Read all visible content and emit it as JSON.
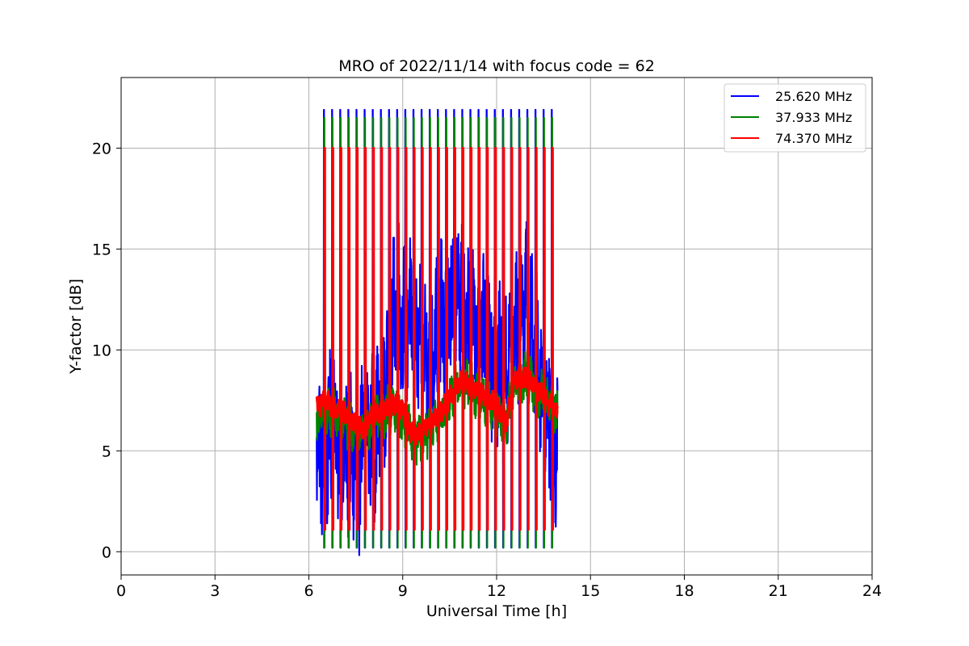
{
  "chart_data": {
    "type": "line",
    "title": "MRO of 2022/11/14 with focus code = 62",
    "xlabel": "Universal Time [h]",
    "ylabel": "Y-factor [dB]",
    "xlim": [
      0,
      24
    ],
    "ylim": [
      -1.15,
      23.5
    ],
    "xticks": [
      0,
      3,
      6,
      9,
      12,
      15,
      18,
      21,
      24
    ],
    "yticks": [
      0,
      5,
      10,
      15,
      20
    ],
    "grid": true,
    "legend_position": "top-right",
    "series": [
      {
        "name": "25.620 MHz",
        "color": "#0000ff",
        "spike_peak": 21.9,
        "spike_base": 0.2,
        "baseline": [
          [
            6.25,
            5.5
          ],
          [
            6.5,
            4.5
          ],
          [
            6.8,
            6.5
          ],
          [
            7.0,
            5.0
          ],
          [
            7.3,
            4.5
          ],
          [
            7.6,
            4.0
          ],
          [
            7.8,
            6.5
          ],
          [
            8.0,
            5.5
          ],
          [
            8.3,
            6.5
          ],
          [
            8.6,
            9.5
          ],
          [
            8.8,
            13.0
          ],
          [
            9.0,
            11.0
          ],
          [
            9.3,
            12.0
          ],
          [
            9.6,
            9.5
          ],
          [
            9.9,
            10.0
          ],
          [
            10.2,
            11.0
          ],
          [
            10.5,
            12.0
          ],
          [
            10.8,
            13.0
          ],
          [
            11.1,
            11.5
          ],
          [
            11.4,
            10.5
          ],
          [
            11.7,
            10.5
          ],
          [
            12.0,
            9.0
          ],
          [
            12.3,
            9.0
          ],
          [
            12.6,
            11.0
          ],
          [
            12.9,
            12.5
          ],
          [
            13.2,
            10.0
          ],
          [
            13.5,
            8.0
          ],
          [
            13.9,
            5.5
          ]
        ]
      },
      {
        "name": "37.933 MHz",
        "color": "#008000",
        "spike_peak": 21.5,
        "spike_base": 0.2,
        "baseline": [
          [
            6.25,
            6.5
          ],
          [
            6.5,
            6.8
          ],
          [
            6.8,
            6.8
          ],
          [
            7.0,
            6.6
          ],
          [
            7.3,
            6.3
          ],
          [
            7.6,
            5.9
          ],
          [
            7.8,
            6.0
          ],
          [
            8.0,
            6.4
          ],
          [
            8.3,
            6.8
          ],
          [
            8.6,
            7.0
          ],
          [
            8.8,
            7.1
          ],
          [
            9.0,
            6.5
          ],
          [
            9.3,
            5.8
          ],
          [
            9.6,
            5.6
          ],
          [
            9.9,
            6.2
          ],
          [
            10.2,
            6.8
          ],
          [
            10.5,
            7.6
          ],
          [
            10.8,
            8.4
          ],
          [
            11.1,
            8.2
          ],
          [
            11.4,
            7.8
          ],
          [
            11.7,
            7.5
          ],
          [
            12.0,
            7.0
          ],
          [
            12.3,
            6.4
          ],
          [
            12.6,
            8.5
          ],
          [
            12.9,
            8.6
          ],
          [
            13.2,
            8.2
          ],
          [
            13.5,
            7.6
          ],
          [
            13.9,
            7.0
          ]
        ]
      },
      {
        "name": "74.370 MHz",
        "color": "#ff0000",
        "spike_peak": 20.0,
        "spike_base": 1.1,
        "baseline": [
          [
            6.25,
            7.2
          ],
          [
            6.5,
            7.4
          ],
          [
            6.8,
            7.2
          ],
          [
            7.0,
            7.0
          ],
          [
            7.3,
            6.6
          ],
          [
            7.6,
            6.1
          ],
          [
            7.8,
            6.2
          ],
          [
            8.0,
            6.7
          ],
          [
            8.3,
            7.0
          ],
          [
            8.6,
            7.2
          ],
          [
            8.8,
            7.4
          ],
          [
            9.0,
            7.0
          ],
          [
            9.3,
            5.8
          ],
          [
            9.6,
            5.9
          ],
          [
            9.9,
            6.4
          ],
          [
            10.2,
            6.9
          ],
          [
            10.5,
            7.6
          ],
          [
            10.8,
            8.4
          ],
          [
            11.1,
            8.3
          ],
          [
            11.4,
            7.9
          ],
          [
            11.7,
            7.6
          ],
          [
            12.0,
            7.2
          ],
          [
            12.3,
            6.3
          ],
          [
            12.6,
            8.6
          ],
          [
            12.9,
            8.6
          ],
          [
            13.2,
            8.3
          ],
          [
            13.5,
            7.7
          ],
          [
            13.9,
            6.9
          ]
        ]
      }
    ],
    "spike_times": [
      6.48,
      6.74,
      7.0,
      7.26,
      7.52,
      7.78,
      8.04,
      8.3,
      8.56,
      8.82,
      9.08,
      9.34,
      9.6,
      9.86,
      10.12,
      10.38,
      10.64,
      10.9,
      11.16,
      11.42,
      11.68,
      11.94,
      12.2,
      12.46,
      12.72,
      12.98,
      13.24,
      13.5,
      13.76
    ],
    "x_range_observed": [
      6.25,
      13.95
    ]
  }
}
